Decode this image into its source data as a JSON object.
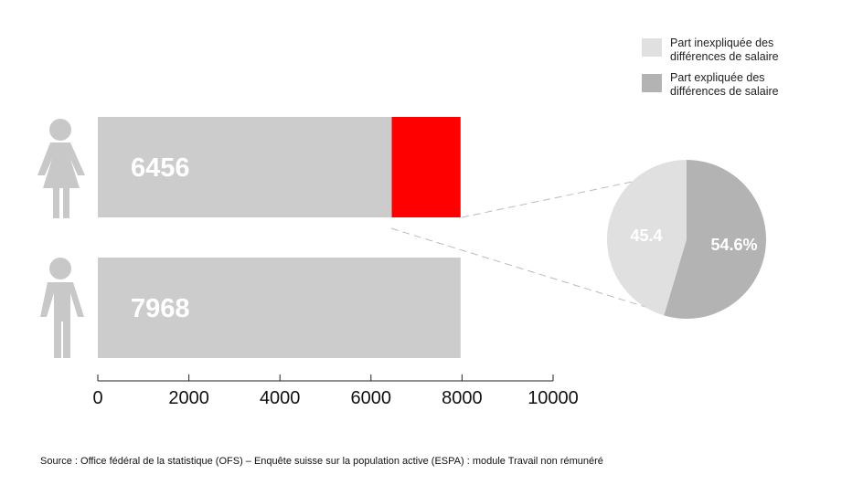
{
  "chart_data": [
    {
      "type": "bar",
      "orientation": "horizontal",
      "categories": [
        null,
        null
      ],
      "series": [
        {
          "color": "#cccccc",
          "values": [
            6456,
            7968
          ]
        },
        {
          "color": "#ff0000",
          "values": [
            1512,
            null
          ]
        }
      ],
      "value_labels": [
        "6456",
        "7968"
      ],
      "xlim": [
        0,
        10000
      ],
      "xticks": [
        0,
        2000,
        4000,
        6000,
        8000,
        10000
      ]
    },
    {
      "type": "pie",
      "categories": [
        "Part inexpliquée des différences de salaire",
        "Part expliquée des différences de salaire"
      ],
      "values": [
        45.4,
        54.6
      ],
      "value_labels": [
        "45.4",
        "54.6%"
      ],
      "colors": [
        "#e0e0e0",
        "#b3b3b3"
      ]
    }
  ],
  "source": "Source : Office fédéral de la statistique (OFS) – Enquête suisse sur la population active (ESPA) : module Travail non rémunéré"
}
